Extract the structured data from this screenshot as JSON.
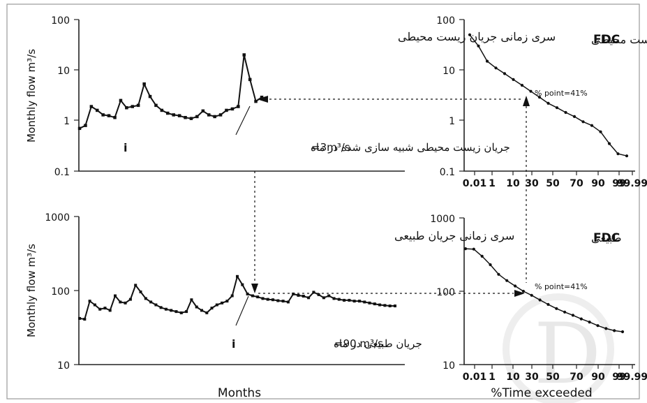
{
  "panels": {
    "env_series": {
      "title": "سری زمانی جریان زیست محیطی",
      "ylabel": "Monthly flow m³/s",
      "yticks": [
        "0.1",
        "1",
        "10",
        "100"
      ],
      "annotation_value": "=3m³/s",
      "annotation_text": "جریان زیست محیطی شبیه سازی شده در ماه",
      "annotation_i": "i",
      "ylim": [
        0.1,
        100
      ],
      "values": [
        0.7,
        0.8,
        1.9,
        1.6,
        1.3,
        1.25,
        1.15,
        2.5,
        1.8,
        1.9,
        2.0,
        5.3,
        3.0,
        2.0,
        1.6,
        1.4,
        1.3,
        1.25,
        1.15,
        1.1,
        1.2,
        1.55,
        1.3,
        1.2,
        1.3,
        1.6,
        1.7,
        1.9,
        20.0,
        6.5,
        2.4,
        2.9
      ]
    },
    "natural_series": {
      "title": "سری زمانی جریان طبیعی",
      "ylabel": "Monthly flow m³/s",
      "yticks": [
        "10",
        "100",
        "1000"
      ],
      "annotation_value": "=90 m³/s",
      "annotation_text": "جریان طبیعی در ماه",
      "annotation_i": "i",
      "xlabel": "Months",
      "ylim": [
        10,
        1000
      ],
      "values": [
        42,
        41,
        72,
        64,
        56,
        58,
        54,
        85,
        70,
        68,
        76,
        118,
        96,
        78,
        70,
        64,
        59,
        56,
        54,
        52,
        50,
        52,
        75,
        60,
        54,
        50,
        58,
        64,
        68,
        72,
        85,
        155,
        120,
        90,
        85,
        82,
        78,
        76,
        75,
        73,
        72,
        70,
        90,
        86,
        84,
        80,
        95,
        88,
        80,
        85,
        78,
        76,
        74,
        74,
        72,
        72,
        70,
        68,
        66,
        64,
        63,
        62,
        62
      ]
    },
    "env_fdc": {
      "title_bold": "FDC",
      "title_text": "زیست محیطی",
      "point_label": "% point=41%",
      "xticks": [
        "0.01",
        "1",
        "10",
        "30",
        "50",
        "70",
        "90",
        "99",
        "99.99"
      ],
      "yticks": [
        "0.1",
        "1",
        "10",
        "100"
      ],
      "ylim": [
        0.1,
        100
      ],
      "values": [
        50,
        30,
        15,
        11,
        8.5,
        6.5,
        5.0,
        3.8,
        2.9,
        2.2,
        1.8,
        1.45,
        1.2,
        0.95,
        0.8,
        0.6,
        0.35,
        0.22,
        0.2
      ]
    },
    "natural_fdc": {
      "title_bold": "FDC",
      "title_text": "طبیعی",
      "point_label": "% point=41%",
      "xticks": [
        "0.01",
        "1",
        "10",
        "30",
        "50",
        "70",
        "90",
        "99",
        "99.99"
      ],
      "yticks": [
        "10",
        "100",
        "1000"
      ],
      "xlabel": "%Time exceeded",
      "ylim": [
        10,
        1000
      ],
      "values": [
        380,
        375,
        300,
        230,
        170,
        140,
        118,
        100,
        88,
        76,
        66,
        58,
        52,
        47,
        42,
        38,
        34,
        31,
        29,
        28
      ]
    }
  },
  "watermark": "D"
}
